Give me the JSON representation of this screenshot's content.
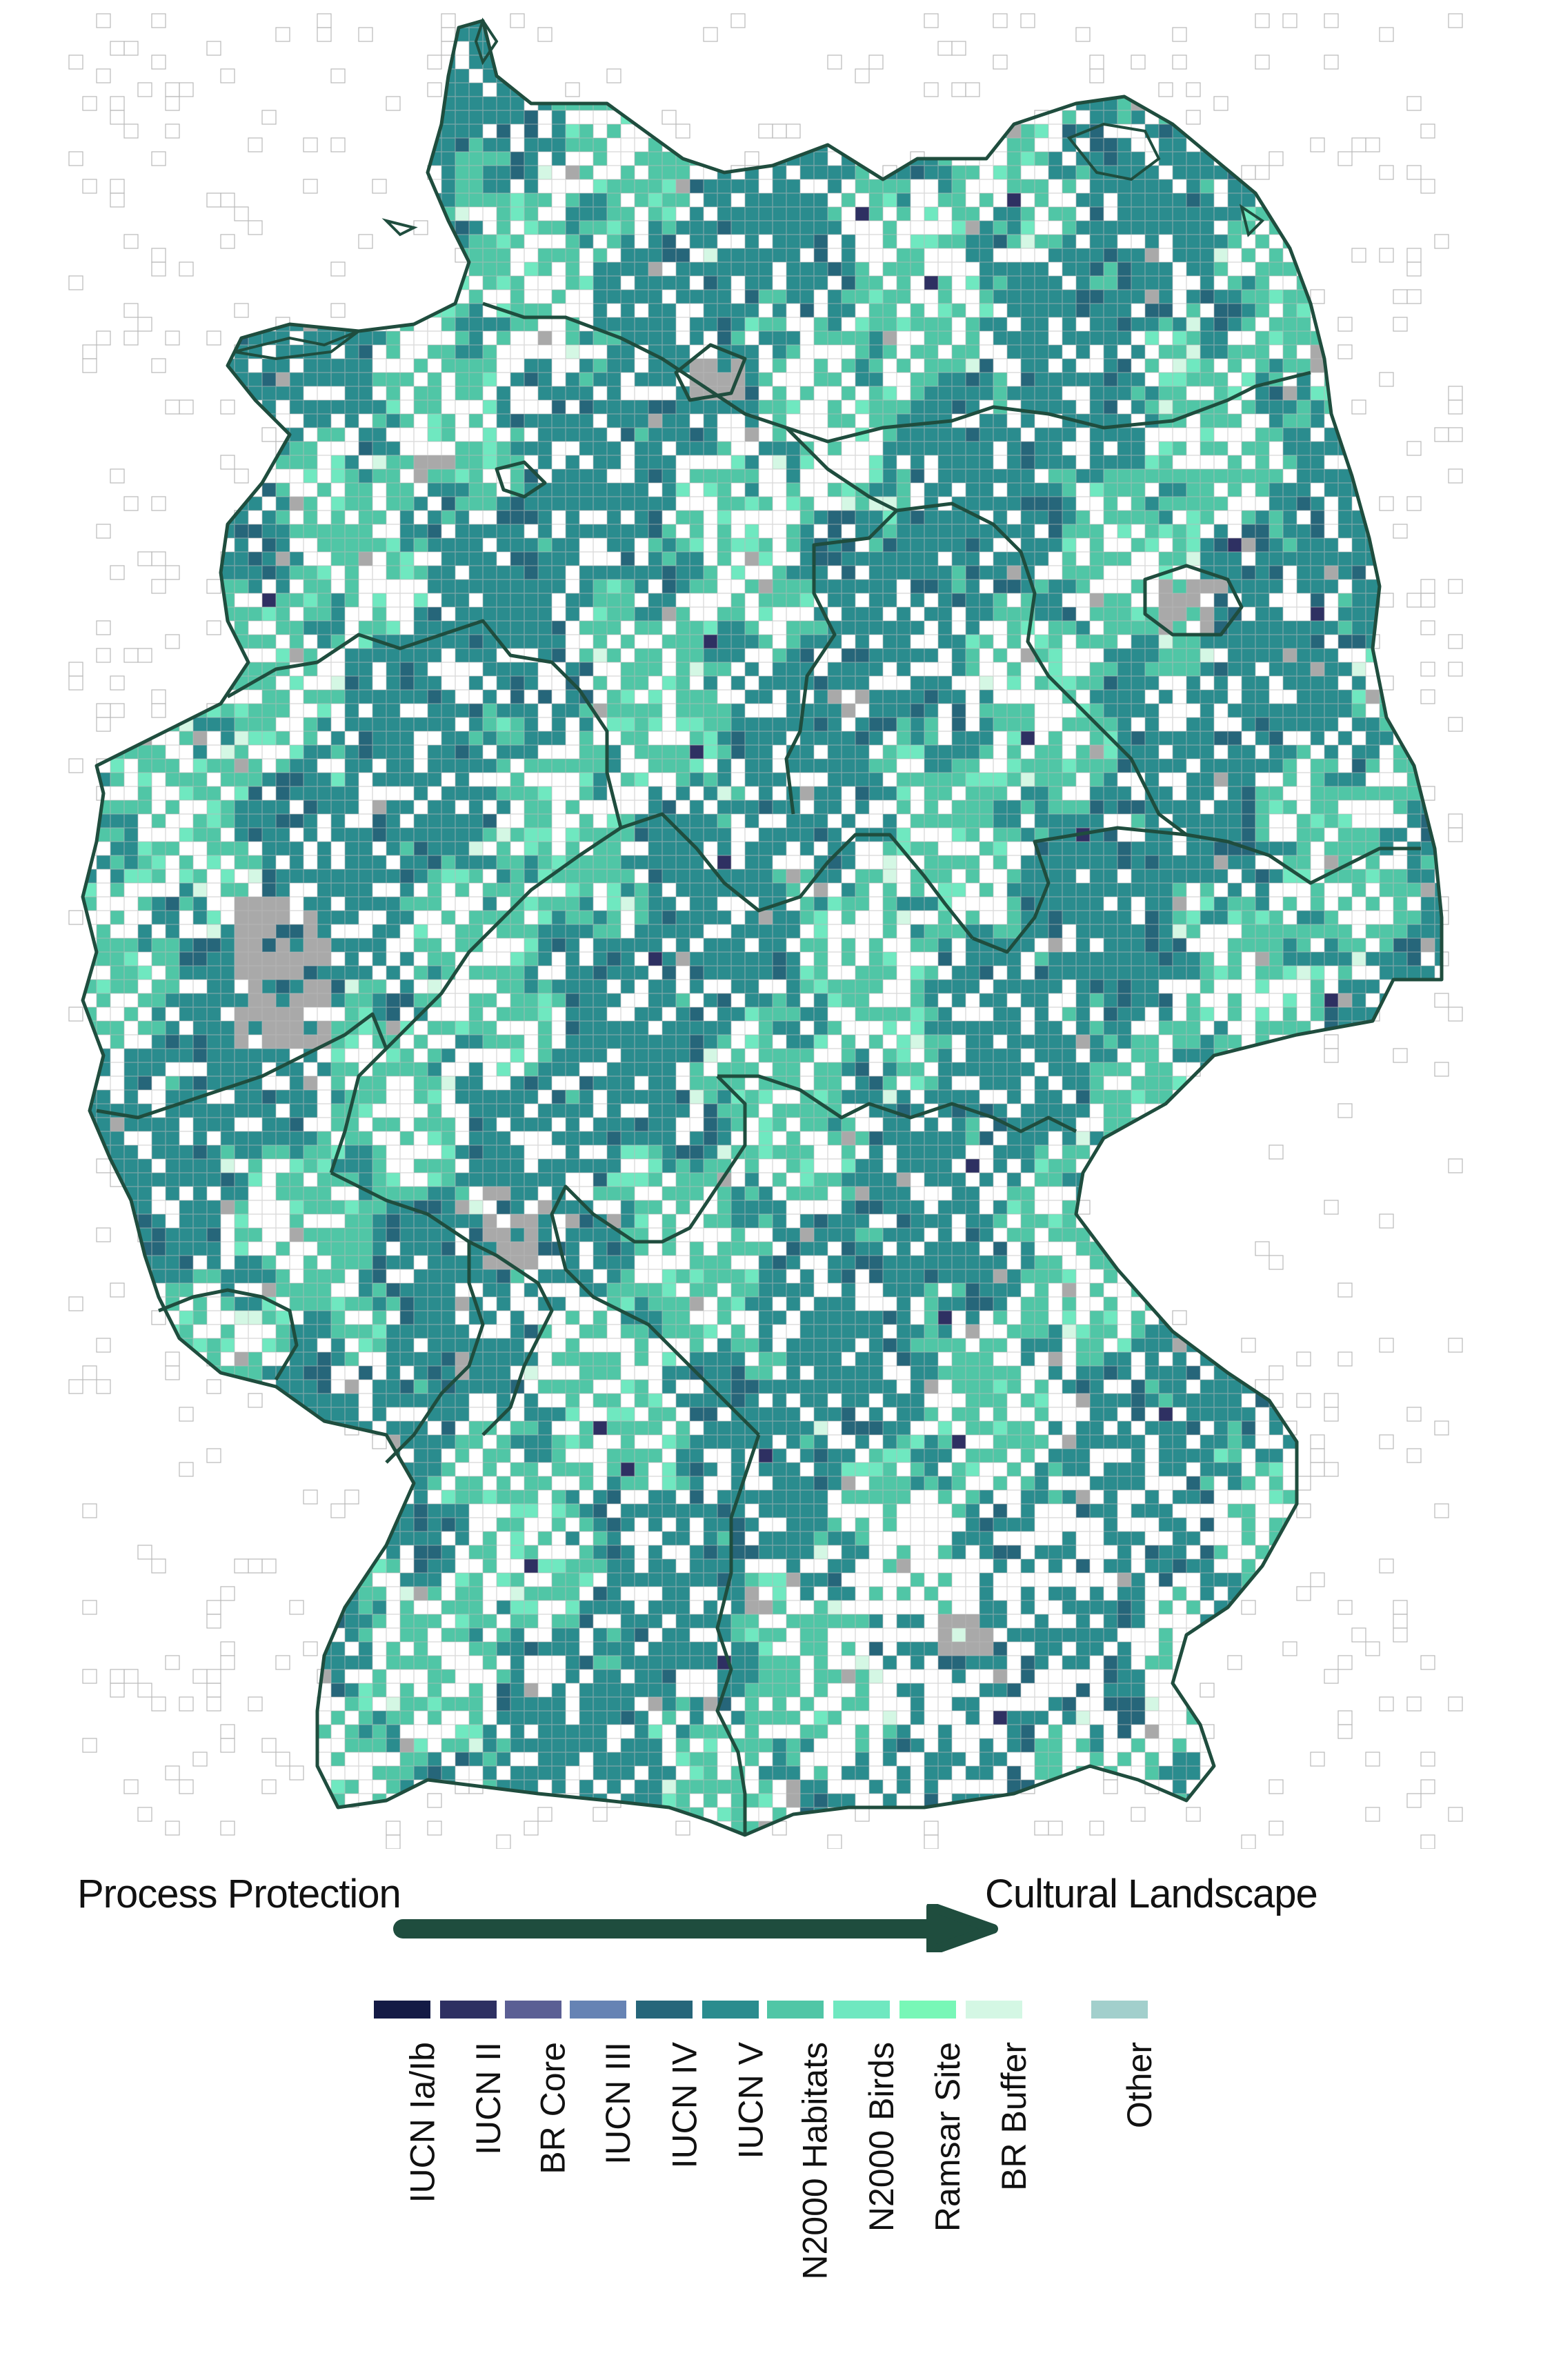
{
  "scale": {
    "left_label": "Process Protection",
    "right_label": "Cultural Landscape"
  },
  "legend": [
    {
      "label": "IUCN Ia/Ib",
      "color": "#141a45"
    },
    {
      "label": "IUCN II",
      "color": "#2e3062"
    },
    {
      "label": "BR Core",
      "color": "#5b5f94"
    },
    {
      "label": "IUCN III",
      "color": "#6683b4"
    },
    {
      "label": "IUCN IV",
      "color": "#26667a"
    },
    {
      "label": "IUCN V",
      "color": "#2a8c8e"
    },
    {
      "label": "N2000 Habitats",
      "color": "#50c6a6"
    },
    {
      "label": "N2000 Birds",
      "color": "#6fe8c0"
    },
    {
      "label": "Ramsar Site",
      "color": "#78f7b7"
    },
    {
      "label": "BR Buffer",
      "color": "#d4f7e4"
    },
    {
      "label": "Other",
      "color": "#a2cfcc"
    }
  ],
  "map_colors": {
    "grid_line": "#b9b9b9",
    "urban_gray": "#a9a9a9",
    "border": "#1f4d3e",
    "arrow": "#1f4d3e"
  }
}
